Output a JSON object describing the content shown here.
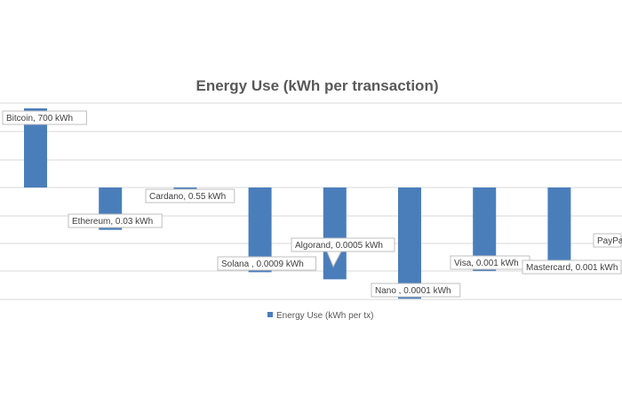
{
  "chart_data": {
    "type": "bar",
    "title": "Energy Use (kWh per transaction)",
    "categories": [
      "Bitcoin",
      "Ethereum",
      "Cardano",
      "Solana",
      "Algorand",
      "Nano",
      "Visa",
      "Mastercard",
      "PayPal"
    ],
    "series": [
      {
        "name": "Energy Use (kWh per tx)",
        "values": [
          700,
          0.03,
          0.55,
          0.0009,
          0.0005,
          0.0001,
          0.001,
          0.001,
          null
        ],
        "color": "#4a7ebb"
      }
    ],
    "data_labels": [
      "Bitcoin, 700 kWh",
      "Ethereum, 0.03 kWh",
      "Cardano, 0.55 kWh",
      "Solana , 0.0009 kWh",
      "Algorand, 0.0005 kWh",
      "Nano , 0.0001 kWh",
      "Visa, 0.001 kWh",
      "Mastercard, 0.001 kWh",
      "PayPa"
    ],
    "y_scale": "log",
    "gridlines": true,
    "legend_position": "bottom",
    "legend": "Energy Use (kWh per tx)"
  }
}
